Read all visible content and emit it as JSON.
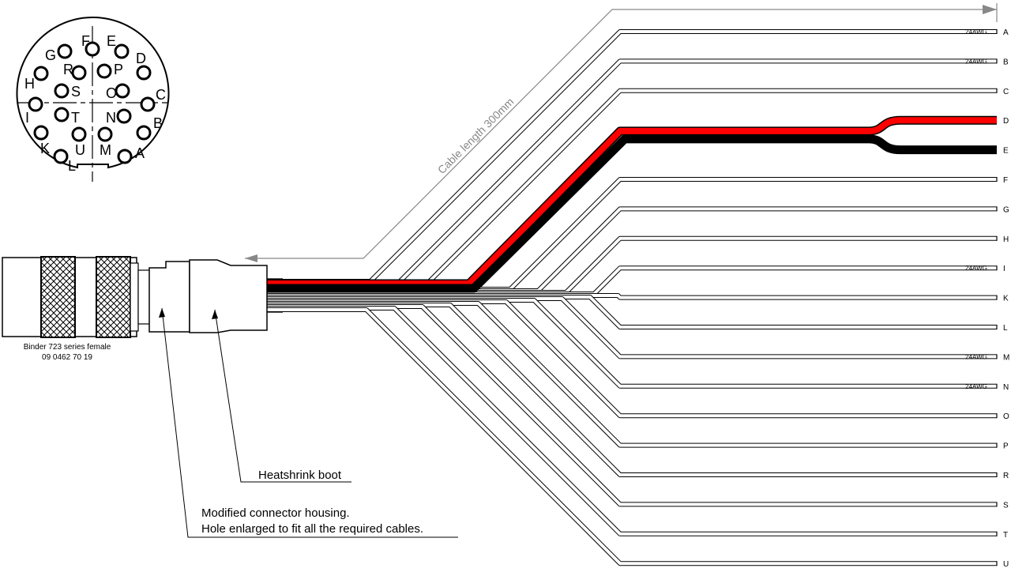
{
  "connector": {
    "label_line1": "Binder 723 series female",
    "label_line2": "09 0462 70 19",
    "pins": [
      "A",
      "B",
      "C",
      "D",
      "E",
      "F",
      "G",
      "H",
      "I",
      "K",
      "L",
      "M",
      "N",
      "O",
      "P",
      "R",
      "S",
      "T",
      "U"
    ]
  },
  "dimension": {
    "label": "Cable length 300mm",
    "color": "#888888"
  },
  "callouts": {
    "boot": "Heatshrink boot",
    "housing_line1": "Modified connector housing.",
    "housing_line2": "Hole enlarged to fit all the required cables."
  },
  "wires": [
    {
      "label": "A",
      "gauge": "24AWG",
      "color": "#ffffff"
    },
    {
      "label": "B",
      "gauge": "24AWG",
      "color": "#ffffff"
    },
    {
      "label": "C",
      "gauge": "",
      "color": "#ffffff"
    },
    {
      "label": "D",
      "gauge": "",
      "color": "#ff0000"
    },
    {
      "label": "E",
      "gauge": "",
      "color": "#000000"
    },
    {
      "label": "F",
      "gauge": "",
      "color": "#ffffff"
    },
    {
      "label": "G",
      "gauge": "",
      "color": "#ffffff"
    },
    {
      "label": "H",
      "gauge": "",
      "color": "#ffffff"
    },
    {
      "label": "I",
      "gauge": "24AWG",
      "color": "#ffffff"
    },
    {
      "label": "K",
      "gauge": "",
      "color": "#ffffff"
    },
    {
      "label": "L",
      "gauge": "",
      "color": "#ffffff"
    },
    {
      "label": "M",
      "gauge": "24AWG",
      "color": "#ffffff"
    },
    {
      "label": "N",
      "gauge": "24AWG",
      "color": "#ffffff"
    },
    {
      "label": "O",
      "gauge": "",
      "color": "#ffffff"
    },
    {
      "label": "P",
      "gauge": "",
      "color": "#ffffff"
    },
    {
      "label": "R",
      "gauge": "",
      "color": "#ffffff"
    },
    {
      "label": "S",
      "gauge": "",
      "color": "#ffffff"
    },
    {
      "label": "T",
      "gauge": "",
      "color": "#ffffff"
    },
    {
      "label": "U",
      "gauge": "",
      "color": "#ffffff"
    }
  ]
}
